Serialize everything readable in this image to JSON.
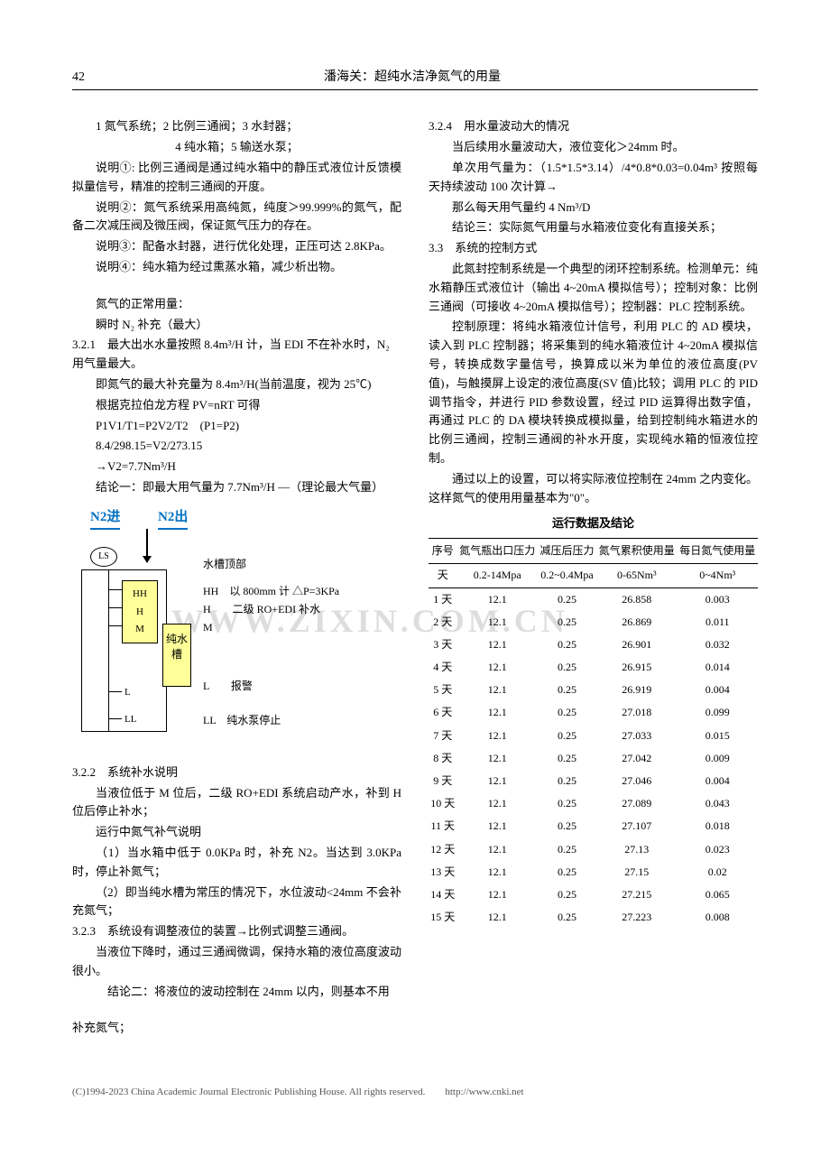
{
  "header": {
    "page_num": "42",
    "title": "潘海关：超纯水洁净氮气的用量"
  },
  "col_left": {
    "l1": "1 氮气系统；2 比例三通阀；3 水封器；",
    "l2": "4 纯水箱；5 输送水泵；",
    "l3": "说明①: 比例三通阀是通过纯水箱中的静压式液位计反馈模拟量信号，精准的控制三通阀的开度。",
    "l4": "说明②：氮气系统采用高纯氮，纯度＞99.999%的氮气，配备二次减压阀及微压阀，保证氮气压力的存在。",
    "l5": "说明③：配备水封器，进行优化处理，正压可达 2.8KPa。",
    "l6": "说明④：纯水箱为经过熏蒸水箱，减少析出物。",
    "l7": "氮气的正常用量：",
    "l8": "瞬时 N₂ 补充（最大）",
    "s321": "3.2.1　最大出水水量按照 8.4m³/H 计，当 EDI 不在补水时，N₂ 用气量最大。",
    "l9": "即氮气的最大补充量为 8.4m³/H(当前温度，视为 25℃)",
    "l10": "根据克拉伯龙方程 PV=nRT 可得",
    "l11": "P1V1/T1=P2V2/T2　(P1=P2)",
    "l12": "8.4/298.15=V2/273.15",
    "l13": "→V2=7.7Nm³/H",
    "l14": "结论一：即最大用气量为 7.7Nm³/H —（理论最大气量）",
    "diag": {
      "n2_in": "N2进",
      "n2_out": "N2出",
      "ls": "LS",
      "top": "水槽顶部",
      "HH": "HH",
      "H": "H",
      "M": "M",
      "L": "L",
      "LL": "LL",
      "tank": "纯水槽",
      "leg_HH": "HH　以 800mm 计 △P=3KPa",
      "leg_H": "H　　二级 RO+EDI 补水",
      "leg_M": "M",
      "leg_L": "L　　报警",
      "leg_LL": "LL　纯水泵停止"
    },
    "s322": "3.2.2　系统补水说明",
    "p322a": "当液位低于 M 位后，二级 RO+EDI 系统启动产水，补到 H 位后停止补水；",
    "p322b": "运行中氮气补气说明",
    "p322c": "（1）当水箱中低于 0.0KPa 时，补充 N2。当达到 3.0KPa 时，停止补氮气；",
    "p322d": "（2）即当纯水槽为常压的情况下，水位波动<24mm 不会补充氮气；",
    "s323": "3.2.3　系统设有调整液位的装置→比例式调整三通阀。",
    "p323a": "当液位下降时，通过三通阀微调，保持水箱的液位高度波动很小。",
    "p323b": "结论二：将液位的波动控制在 24mm 以内，则基本不用",
    "p_append": "补充氮气；"
  },
  "col_right": {
    "s324": "3.2.4　用水量波动大的情况",
    "p324a": "当后续用水量波动大，液位变化＞24mm 时。",
    "p324b": "单次用气量为：（1.5*1.5*3.14）/4*0.8*0.03=0.04m³ 按照每天持续波动 100 次计算→",
    "p324c": "那么每天用气量约 4 Nm³/D",
    "p324d": "结论三：实际氮气用量与水箱液位变化有直接关系；",
    "s33": "3.3　系统的控制方式",
    "p33a": "此氮封控制系统是一个典型的闭环控制系统。检测单元：纯水箱静压式液位计（输出 4~20mA 模拟信号）；控制对象：比例三通阀（可接收 4~20mA 模拟信号）；控制器：PLC 控制系统。",
    "p33b": "控制原理：将纯水箱液位计信号，利用 PLC 的 AD 模块，读入到 PLC 控制器；将采集到的纯水箱液位计 4~20mA 模拟信号，转换成数字量信号，换算成以米为单位的液位高度(PV 值)，与触摸屏上设定的液位高度(SV 值)比较；调用 PLC 的 PID 调节指令，并进行 PID 参数设置，经过 PID 运算得出数字值，再通过 PLC 的 DA 模块转换成模拟量，给到控制纯水箱进水的比例三通阀，控制三通阀的补水开度，实现纯水箱的恒液位控制。",
    "p33c": "通过以上的设置，可以将实际液位控制在 24mm 之内变化。这样氮气的使用用量基本为\"0\"。",
    "table_title": "运行数据及结论",
    "table": {
      "headers": [
        "序号",
        "氮气瓶出口压力",
        "减压后压力",
        "氮气累积使用量",
        "每日氮气使用量"
      ],
      "units": [
        "天",
        "0.2-14Mpa",
        "0.2~0.4Mpa",
        "0-65Nm³",
        "0~4Nm³"
      ],
      "rows": [
        [
          "1 天",
          "12.1",
          "0.25",
          "26.858",
          "0.003"
        ],
        [
          "2 天",
          "12.1",
          "0.25",
          "26.869",
          "0.011"
        ],
        [
          "3 天",
          "12.1",
          "0.25",
          "26.901",
          "0.032"
        ],
        [
          "4 天",
          "12.1",
          "0.25",
          "26.915",
          "0.014"
        ],
        [
          "5 天",
          "12.1",
          "0.25",
          "26.919",
          "0.004"
        ],
        [
          "6 天",
          "12.1",
          "0.25",
          "27.018",
          "0.099"
        ],
        [
          "7 天",
          "12.1",
          "0.25",
          "27.033",
          "0.015"
        ],
        [
          "8 天",
          "12.1",
          "0.25",
          "27.042",
          "0.009"
        ],
        [
          "9 天",
          "12.1",
          "0.25",
          "27.046",
          "0.004"
        ],
        [
          "10 天",
          "12.1",
          "0.25",
          "27.089",
          "0.043"
        ],
        [
          "11 天",
          "12.1",
          "0.25",
          "27.107",
          "0.018"
        ],
        [
          "12 天",
          "12.1",
          "0.25",
          "27.13",
          "0.023"
        ],
        [
          "13 天",
          "12.1",
          "0.25",
          "27.15",
          "0.02"
        ],
        [
          "14 天",
          "12.1",
          "0.25",
          "27.215",
          "0.065"
        ],
        [
          "15 天",
          "12.1",
          "0.25",
          "27.223",
          "0.008"
        ]
      ]
    }
  },
  "watermark": "WWW.ZIXIN.COM.CN",
  "footer": "(C)1994-2023 China Academic Journal Electronic Publishing House. All rights reserved.　　http://www.cnki.net"
}
